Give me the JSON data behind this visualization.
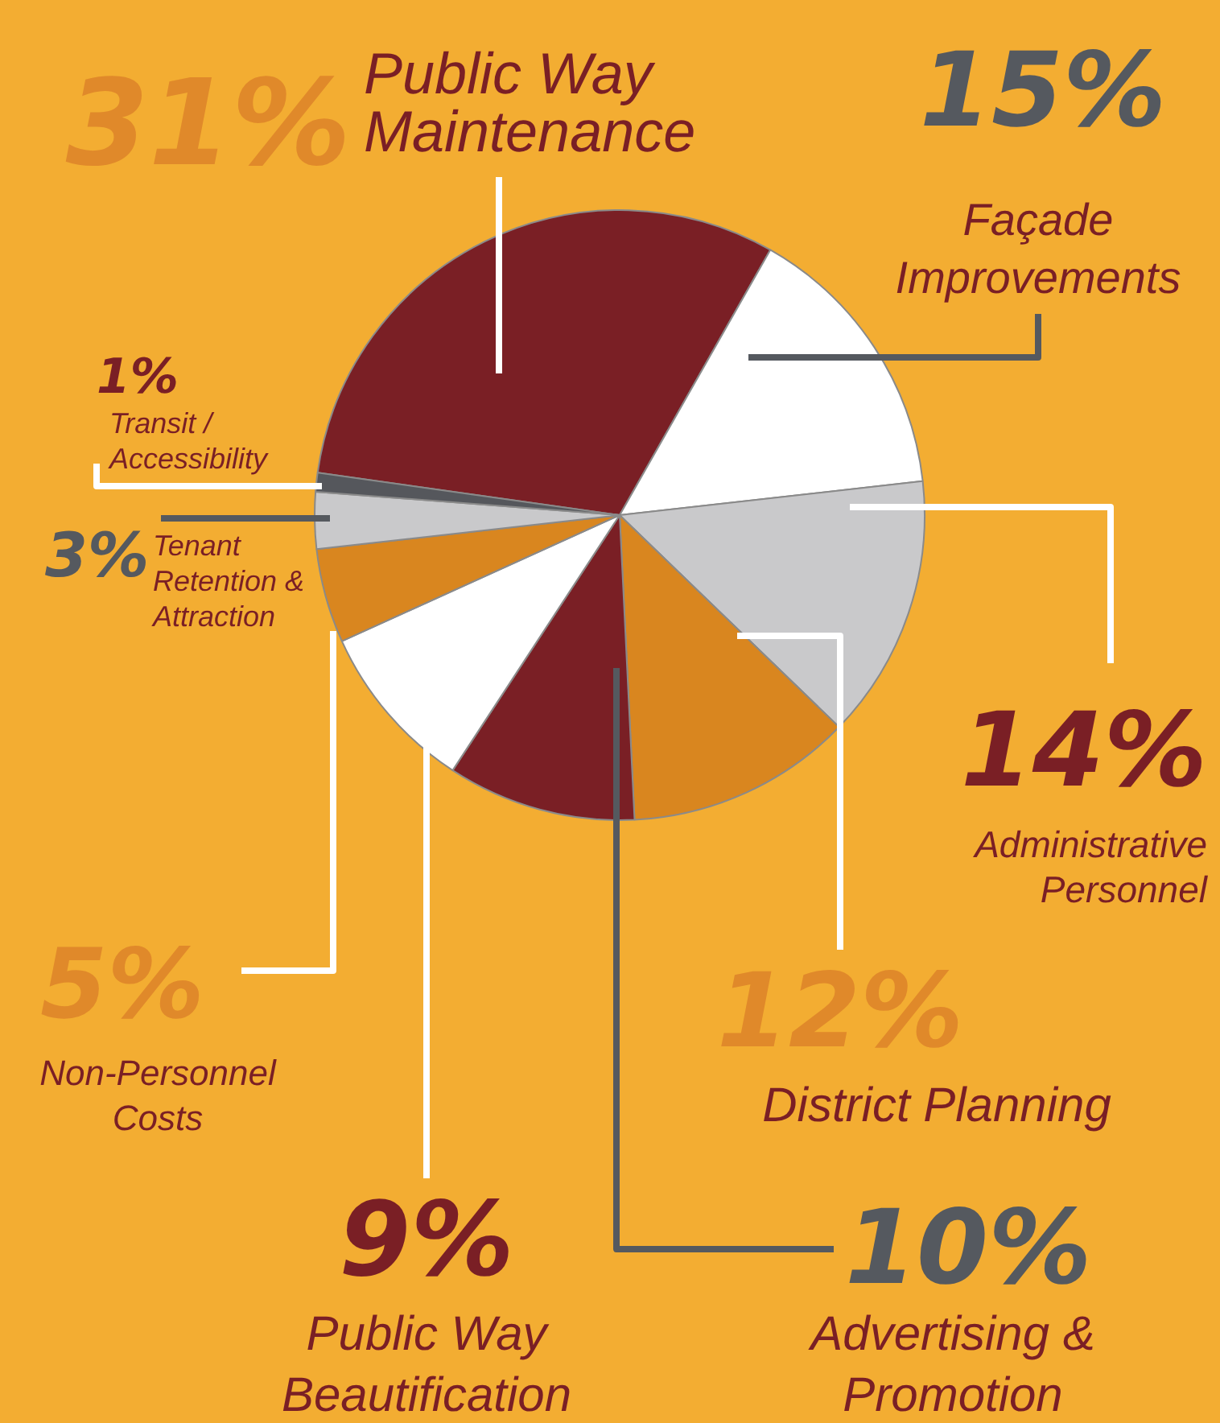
{
  "chart_data": {
    "type": "pie",
    "categories": [
      "Public Way Maintenance",
      "Façade Improvements",
      "Administrative Personnel",
      "District Planning",
      "Advertising & Promotion",
      "Public Way Beautification",
      "Non-Personnel Costs",
      "Tenant Retention & Attraction",
      "Transit / Accessibility"
    ],
    "values": [
      31,
      15,
      14,
      12,
      10,
      9,
      5,
      3,
      1
    ],
    "value_labels": [
      "31%",
      "15%",
      "14%",
      "12%",
      "10%",
      "9%",
      "5%",
      "3%",
      "1%"
    ],
    "colors": [
      "#7a1f25",
      "#ffffff",
      "#c9c9cb",
      "#d9861f",
      "#7a1f25",
      "#ffffff",
      "#d9861f",
      "#c9c9cb",
      "#55575c"
    ],
    "legend": false
  }
}
